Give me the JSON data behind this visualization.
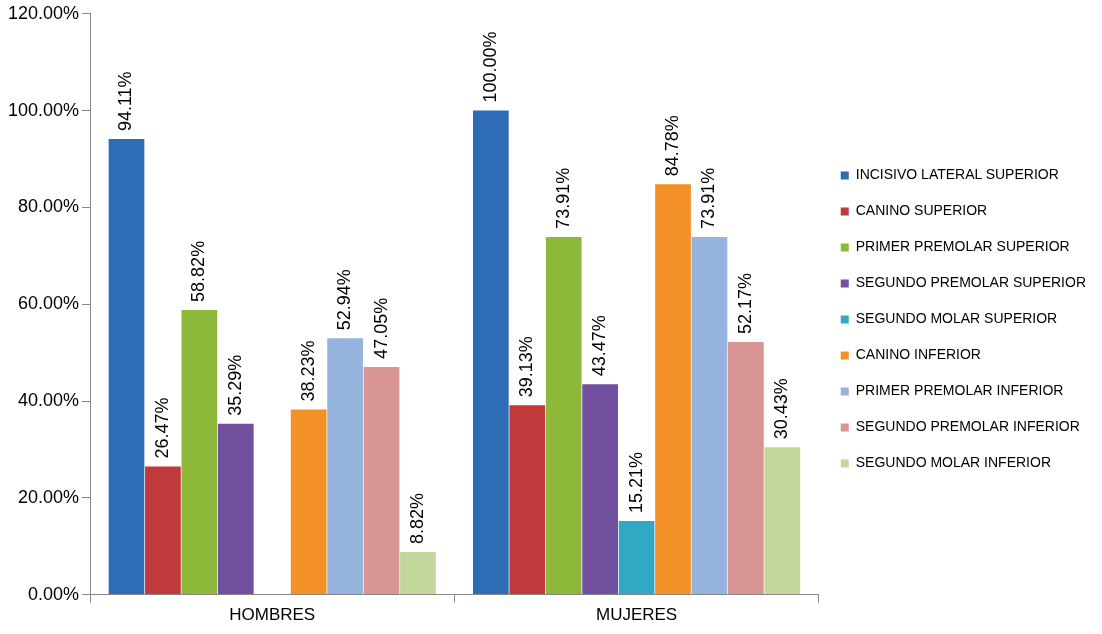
{
  "chart_data": {
    "type": "bar",
    "categories": [
      "HOMBRES",
      "MUJERES"
    ],
    "series": [
      {
        "name": "INCISIVO LATERAL SUPERIOR",
        "color": "#2e6db5",
        "values": [
          94.11,
          100
        ],
        "value_labels": [
          "94.11%",
          "100.00%"
        ]
      },
      {
        "name": "CANINO SUPERIOR",
        "color": "#c0393b",
        "values": [
          26.47,
          39.13
        ],
        "value_labels": [
          "26.47%",
          "39.13%"
        ]
      },
      {
        "name": "PRIMER PREMOLAR SUPERIOR",
        "color": "#8db83a",
        "values": [
          58.82,
          73.91
        ],
        "value_labels": [
          "58.82%",
          "73.91%"
        ]
      },
      {
        "name": "SEGUNDO PREMOLAR SUPERIOR",
        "color": "#7150a0",
        "values": [
          35.29,
          43.47
        ],
        "value_labels": [
          "35.29%",
          "43.47%"
        ]
      },
      {
        "name": "SEGUNDO MOLAR SUPERIOR",
        "color": "#31a8c4",
        "values": [
          null,
          15.21
        ],
        "value_labels": [
          null,
          "15.21%"
        ]
      },
      {
        "name": "CANINO INFERIOR",
        "color": "#f39028",
        "values": [
          38.23,
          84.78
        ],
        "value_labels": [
          "38.23%",
          "84.78%"
        ]
      },
      {
        "name": "PRIMER PREMOLAR INFERIOR",
        "color": "#95b3dd",
        "values": [
          52.94,
          73.91
        ],
        "value_labels": [
          "52.94%",
          "73.91%"
        ]
      },
      {
        "name": "SEGUNDO PREMOLAR INFERIOR",
        "color": "#d99594",
        "values": [
          47.05,
          52.17
        ],
        "value_labels": [
          "47.05%",
          "52.17%"
        ]
      },
      {
        "name": "SEGUNDO MOLAR INFERIOR",
        "color": "#c3d69b",
        "values": [
          8.82,
          30.43
        ],
        "value_labels": [
          "8.82%",
          "30.43%"
        ]
      }
    ],
    "ylim": [
      0,
      120
    ],
    "yticks": [
      {
        "value": 0,
        "label": "0.00%"
      },
      {
        "value": 20,
        "label": "20.00%"
      },
      {
        "value": 40,
        "label": "40.00%"
      },
      {
        "value": 60,
        "label": "60.00%"
      },
      {
        "value": 80,
        "label": "80.00%"
      },
      {
        "value": 100,
        "label": "100.00%"
      },
      {
        "value": 120,
        "label": "120.00%"
      }
    ],
    "grid": false,
    "legend": "right"
  }
}
